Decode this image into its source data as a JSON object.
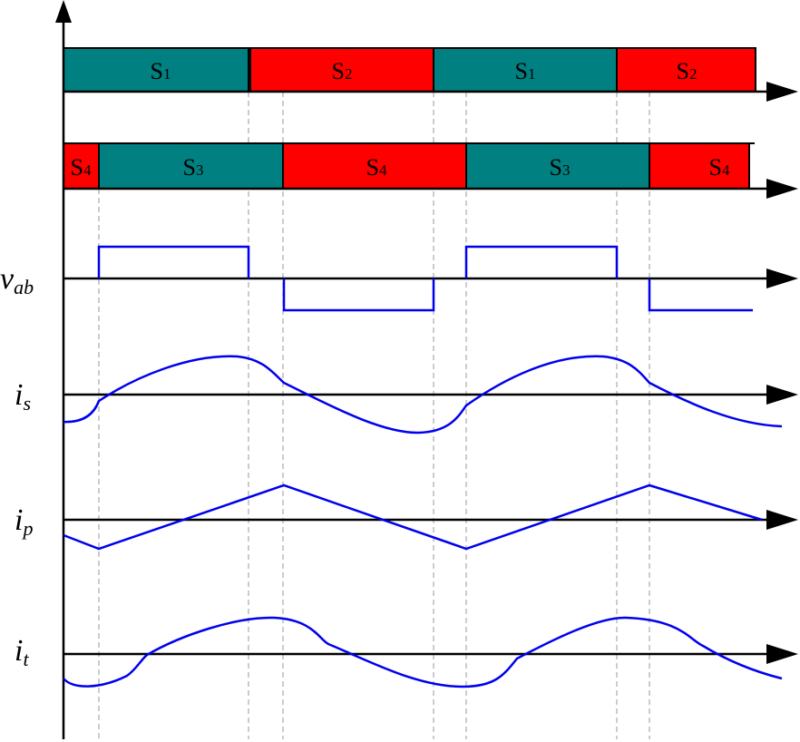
{
  "gate_rows": [
    {
      "segments": [
        {
          "label": "S",
          "sub": "1"
        },
        {
          "label": "S",
          "sub": "2"
        },
        {
          "label": "S",
          "sub": "1"
        },
        {
          "label": "S",
          "sub": "2"
        }
      ]
    },
    {
      "segments": [
        {
          "label": "S",
          "sub": "4"
        },
        {
          "label": "S",
          "sub": "3"
        },
        {
          "label": "S",
          "sub": "4"
        },
        {
          "label": "S",
          "sub": "3"
        },
        {
          "label": "S",
          "sub": "4"
        }
      ]
    }
  ],
  "signals": [
    {
      "name": "v",
      "sub": "ab"
    },
    {
      "name": "i",
      "sub": "s"
    },
    {
      "name": "i",
      "sub": "p"
    },
    {
      "name": "i",
      "sub": "t"
    }
  ]
}
